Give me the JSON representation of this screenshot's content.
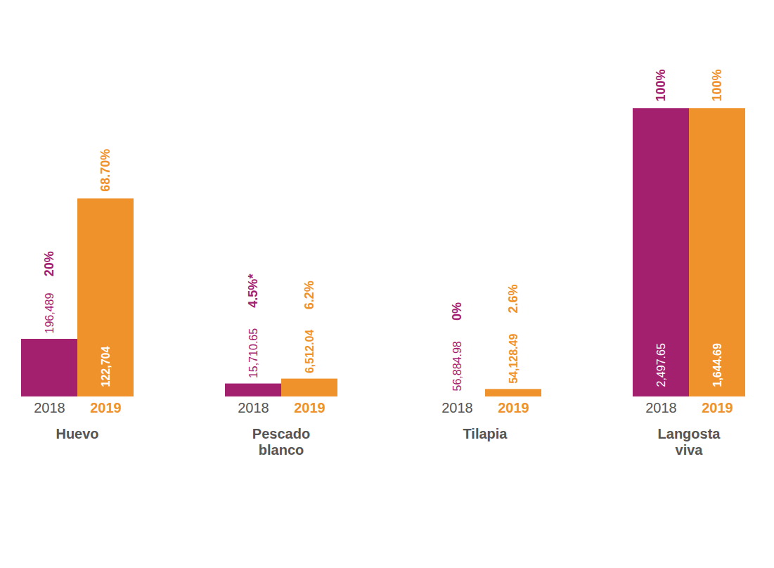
{
  "chart_data": [
    {
      "type": "bar",
      "title": "Huevo",
      "categories": [
        "2018",
        "2019"
      ],
      "values": [
        20,
        68.7
      ],
      "value_labels": [
        "20%",
        "68.70%"
      ],
      "volumes": [
        196489,
        122704
      ],
      "colors": [
        "#a3206f",
        "#f0922b"
      ],
      "ylim": [
        0,
        100
      ],
      "data_labels": true,
      "tick_labels": "x"
    },
    {
      "type": "bar",
      "title": "Pescado blanco",
      "categories": [
        "2018",
        "2019"
      ],
      "values": [
        4.5,
        6.2
      ],
      "value_labels": [
        "4.5%*",
        "6.2%"
      ],
      "volumes": [
        15710.65,
        6512.04
      ],
      "colors": [
        "#a3206f",
        "#f0922b"
      ],
      "ylim": [
        0,
        100
      ],
      "data_labels": true,
      "tick_labels": "x"
    },
    {
      "type": "bar",
      "title": "Tilapia",
      "categories": [
        "2018",
        "2019"
      ],
      "values": [
        0,
        2.6
      ],
      "value_labels": [
        "0%",
        "2.6%"
      ],
      "volumes": [
        56884.98,
        54128.49
      ],
      "colors": [
        "#a3206f",
        "#f0922b"
      ],
      "ylim": [
        0,
        100
      ],
      "data_labels": true,
      "tick_labels": "x"
    },
    {
      "type": "bar",
      "title": "Langosta viva",
      "categories": [
        "2018",
        "2019"
      ],
      "values": [
        100,
        100
      ],
      "value_labels": [
        "100%",
        "100%"
      ],
      "volumes": [
        2497.65,
        1644.69
      ],
      "colors": [
        "#a3206f",
        "#f0922b"
      ],
      "ylim": [
        0,
        100
      ],
      "data_labels": true,
      "tick_labels": "x"
    }
  ]
}
